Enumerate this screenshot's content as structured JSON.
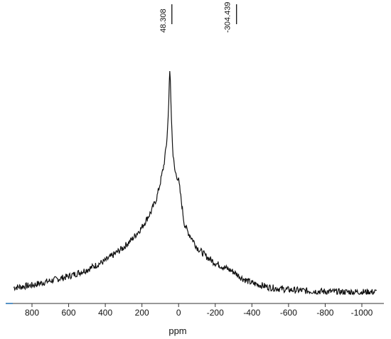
{
  "chart_data": {
    "type": "line",
    "xlabel": "ppm",
    "x_reversed": true,
    "xlim": [
      920,
      -1100
    ],
    "ticks": [
      800,
      600,
      400,
      200,
      0,
      -200,
      -400,
      -600,
      -800,
      -1000
    ],
    "tick_labels": [
      "800",
      "600",
      "400",
      "200",
      "0",
      "-200",
      "-400",
      "-600",
      "-800",
      "-1000"
    ],
    "peak_labels": [
      {
        "label": "48.308",
        "x": 48.308
      },
      {
        "label": "-304.439",
        "x": -304.439
      }
    ],
    "axis_color": "#1f6fb2",
    "line_color": "#111111",
    "ylim": [
      0,
      1
    ],
    "series": [
      {
        "x": [
          900,
          800,
          700,
          600,
          500,
          400,
          300,
          250,
          200,
          150,
          120,
          100,
          80,
          65,
          55,
          50,
          48,
          45,
          40,
          30,
          20,
          10,
          0,
          -10,
          -30,
          -50,
          -80,
          -100,
          -150,
          -200,
          -250,
          -300,
          -350,
          -400,
          -450,
          -500,
          -550,
          -600,
          -700,
          -800,
          -900,
          -1000,
          -1080
        ],
        "y": [
          0.03,
          0.04,
          0.06,
          0.08,
          0.11,
          0.15,
          0.21,
          0.25,
          0.3,
          0.37,
          0.43,
          0.5,
          0.58,
          0.68,
          0.82,
          0.98,
          1.0,
          0.96,
          0.8,
          0.62,
          0.55,
          0.53,
          0.51,
          0.45,
          0.32,
          0.28,
          0.24,
          0.21,
          0.17,
          0.14,
          0.12,
          0.1,
          0.07,
          0.05,
          0.04,
          0.03,
          0.025,
          0.02,
          0.015,
          0.012,
          0.01,
          0.01,
          0.01
        ]
      }
    ]
  }
}
